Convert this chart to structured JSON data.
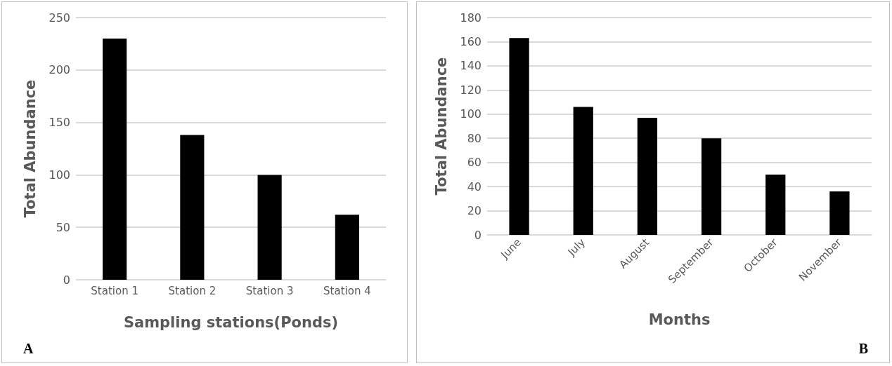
{
  "chart_data": [
    {
      "type": "bar",
      "categories": [
        "Station 1",
        "Station 2",
        "Station 3",
        "Station 4"
      ],
      "values": [
        230,
        138,
        100,
        62
      ],
      "color": "#000000",
      "xlabel": "Sampling stations(Ponds)",
      "ylabel": "Total Abundance",
      "ylim": [
        0,
        250
      ],
      "yticks": [
        0,
        50,
        100,
        150,
        200,
        250
      ],
      "grid": "y",
      "annotations": [
        "A"
      ]
    },
    {
      "type": "bar",
      "categories": [
        "June",
        "July",
        "August",
        "September",
        "October",
        "November"
      ],
      "values": [
        163,
        106,
        97,
        80,
        50,
        36
      ],
      "color": "#000000",
      "xlabel": "Months",
      "ylabel": "Total Abundance",
      "ylim": [
        0,
        180
      ],
      "yticks": [
        0,
        20,
        40,
        60,
        80,
        100,
        120,
        140,
        160,
        180
      ],
      "grid": "y",
      "annotations": [
        "B"
      ]
    }
  ]
}
